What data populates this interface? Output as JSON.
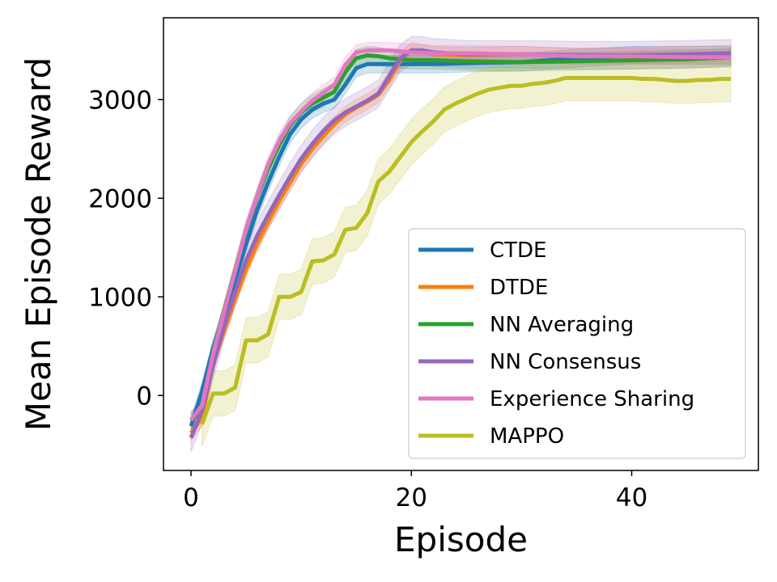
{
  "chart_data": {
    "type": "line",
    "xlabel": "Episode",
    "ylabel": "Mean Episode Reward",
    "xlim": [
      -2.5,
      51.5
    ],
    "ylim": [
      -760,
      3830
    ],
    "xticks": [
      0,
      20,
      40
    ],
    "yticks": [
      0,
      1000,
      2000,
      3000
    ],
    "grid": false,
    "legend_position": "lower-right",
    "series": [
      {
        "name": "CTDE",
        "color": "#1f77b4",
        "x": [
          0,
          1,
          2,
          3,
          4,
          5,
          6,
          7,
          8,
          9,
          10,
          11,
          12,
          13,
          14,
          15,
          16,
          17,
          18,
          19,
          20,
          22,
          25,
          30,
          35,
          40,
          45,
          49
        ],
        "y": [
          -310,
          40,
          480,
          830,
          1170,
          1540,
          1880,
          2160,
          2420,
          2650,
          2800,
          2900,
          2960,
          3000,
          3150,
          3320,
          3360,
          3360,
          3360,
          3360,
          3360,
          3360,
          3370,
          3380,
          3420,
          3450,
          3450,
          3450
        ],
        "band": 90
      },
      {
        "name": "DTDE",
        "color": "#ff7f0e",
        "x": [
          0,
          1,
          2,
          3,
          4,
          5,
          6,
          7,
          8,
          9,
          10,
          11,
          12,
          13,
          14,
          15,
          16,
          17,
          18,
          19,
          20,
          21,
          22,
          25,
          30,
          35,
          40,
          45,
          49
        ],
        "y": [
          -380,
          -230,
          320,
          660,
          980,
          1280,
          1540,
          1760,
          1970,
          2160,
          2350,
          2500,
          2630,
          2750,
          2850,
          2920,
          2980,
          3050,
          3200,
          3400,
          3500,
          3480,
          3460,
          3450,
          3460,
          3440,
          3450,
          3460,
          3470
        ],
        "band": 80
      },
      {
        "name": "NN Averaging",
        "color": "#2ca02c",
        "x": [
          0,
          1,
          2,
          3,
          4,
          5,
          6,
          7,
          8,
          9,
          10,
          11,
          12,
          13,
          14,
          15,
          16,
          17,
          18,
          19,
          20,
          22,
          25,
          30,
          35,
          40,
          45,
          49
        ],
        "y": [
          -250,
          -150,
          440,
          860,
          1270,
          1680,
          2010,
          2300,
          2540,
          2740,
          2870,
          2960,
          3020,
          3080,
          3280,
          3420,
          3450,
          3440,
          3420,
          3410,
          3400,
          3400,
          3390,
          3380,
          3390,
          3400,
          3410,
          3430
        ],
        "band": 90
      },
      {
        "name": "NN Consensus",
        "color": "#9467bd",
        "x": [
          0,
          1,
          2,
          3,
          4,
          5,
          6,
          7,
          8,
          9,
          10,
          11,
          12,
          13,
          14,
          15,
          16,
          17,
          18,
          19,
          20,
          21,
          22,
          25,
          30,
          35,
          40,
          45,
          49
        ],
        "y": [
          -430,
          -150,
          300,
          710,
          1050,
          1370,
          1620,
          1830,
          2030,
          2220,
          2400,
          2550,
          2680,
          2790,
          2870,
          2930,
          2990,
          3060,
          3240,
          3420,
          3500,
          3500,
          3480,
          3460,
          3460,
          3450,
          3450,
          3460,
          3470
        ],
        "band": 140
      },
      {
        "name": "Experience Sharing",
        "color": "#e377c2",
        "x": [
          0,
          1,
          2,
          3,
          4,
          5,
          6,
          7,
          8,
          9,
          10,
          11,
          12,
          13,
          14,
          15,
          16,
          17,
          18,
          19,
          20,
          22,
          25,
          30,
          35,
          40,
          45,
          49
        ],
        "y": [
          -250,
          -100,
          420,
          850,
          1260,
          1690,
          2020,
          2340,
          2580,
          2760,
          2880,
          2990,
          3070,
          3150,
          3350,
          3480,
          3500,
          3500,
          3500,
          3490,
          3480,
          3470,
          3470,
          3460,
          3440,
          3440,
          3430,
          3430
        ],
        "band": 80
      },
      {
        "name": "MAPPO",
        "color": "#bcbd22",
        "x": [
          1,
          2,
          3,
          4,
          5,
          6,
          7,
          8,
          9,
          10,
          11,
          12,
          13,
          14,
          15,
          16,
          17,
          18,
          19,
          20,
          21,
          22,
          23,
          24,
          25,
          26,
          27,
          28,
          29,
          30,
          31,
          32,
          33,
          34,
          35,
          36,
          37,
          38,
          39,
          40,
          41,
          42,
          43,
          44,
          45,
          46,
          47,
          48,
          49
        ],
        "y": [
          -290,
          20,
          20,
          80,
          560,
          560,
          620,
          1000,
          1000,
          1050,
          1360,
          1370,
          1430,
          1680,
          1700,
          1850,
          2170,
          2270,
          2420,
          2570,
          2680,
          2780,
          2900,
          2960,
          3010,
          3060,
          3100,
          3120,
          3140,
          3140,
          3160,
          3170,
          3190,
          3220,
          3220,
          3220,
          3220,
          3220,
          3220,
          3220,
          3210,
          3210,
          3200,
          3190,
          3190,
          3200,
          3200,
          3210,
          3210
        ],
        "band": 230
      }
    ]
  }
}
